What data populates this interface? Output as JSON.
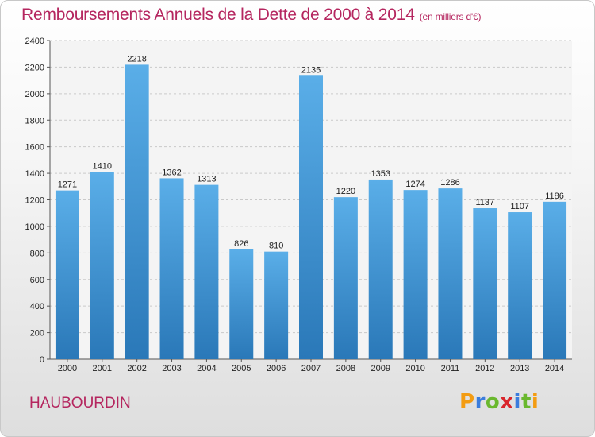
{
  "page": {
    "title": "Remboursements Annuels de la Dette de 2000 à 2014",
    "unit": "(en milliers d'€)",
    "city": "HAUBOURDIN",
    "logo": {
      "letters": [
        "P",
        "r",
        "o",
        "x",
        "i",
        "t",
        "i"
      ],
      "colors": [
        "#f39c12",
        "#3b7ddd",
        "#6ab82e",
        "#d9262c",
        "#3b7ddd",
        "#6ab82e",
        "#f39c12"
      ]
    }
  },
  "chart_data": {
    "type": "bar",
    "categories": [
      "2000",
      "2001",
      "2002",
      "2003",
      "2004",
      "2005",
      "2006",
      "2007",
      "2008",
      "2009",
      "2010",
      "2011",
      "2012",
      "2013",
      "2014"
    ],
    "values": [
      1271,
      1410,
      2218,
      1362,
      1313,
      826,
      810,
      2135,
      1220,
      1353,
      1274,
      1286,
      1137,
      1107,
      1186
    ],
    "data_labels": [
      "1271",
      "1410",
      "2218",
      "1362",
      "1313",
      "826",
      "810",
      "2135",
      "1220",
      "1353",
      "1274",
      "1286",
      "1137",
      "1107",
      "1186"
    ],
    "y_ticks": [
      0,
      200,
      400,
      600,
      800,
      1000,
      1200,
      1400,
      1600,
      1800,
      2000,
      2200,
      2400
    ],
    "ylim": [
      0,
      2400
    ],
    "grid": true,
    "bar_color_top": "#5aaee8",
    "bar_color_bottom": "#2a78b8",
    "legend": "none"
  }
}
